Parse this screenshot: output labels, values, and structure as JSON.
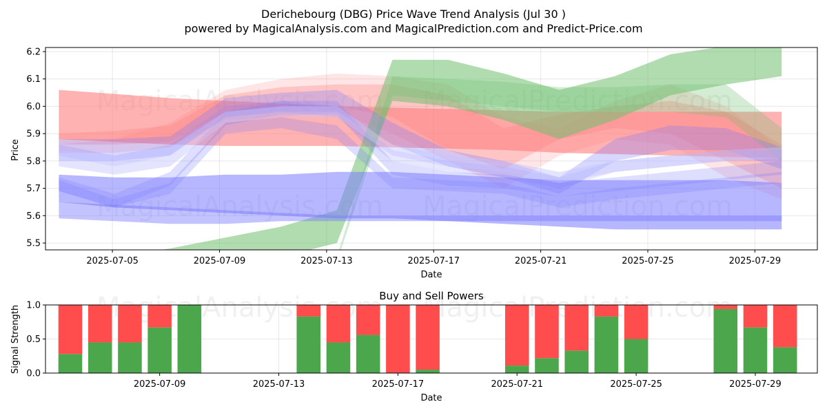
{
  "figure": {
    "title": "Derichebourg (DBG) Price Wave Trend Analysis (Jul 30 )",
    "subtitle": "powered by MagicalAnalysis.com and MagicalPrediction.com and Predict-Price.com",
    "watermarks": [
      "MagicalAnalysis.com",
      "MagicalPrediction.com"
    ]
  },
  "chart_data": [
    {
      "type": "area",
      "xlabel": "Date",
      "ylabel": "Price",
      "x_start": "2025-07-03",
      "x_end": "2025-07-30",
      "xlim": [
        "2025-07-02 12:00",
        "2025-07-31 08:00"
      ],
      "ylim": [
        5.475,
        6.215
      ],
      "xticks": [
        "2025-07-05",
        "2025-07-09",
        "2025-07-13",
        "2025-07-17",
        "2025-07-21",
        "2025-07-25",
        "2025-07-29"
      ],
      "yticks": [
        5.5,
        5.6,
        5.7,
        5.8,
        5.9,
        6.0,
        6.1,
        6.2
      ],
      "grid": true,
      "colors": {
        "red": "#ff7f7f",
        "green": "#6fbf6f",
        "blue": "#7b7bff",
        "blue_light": "#c4c4ff"
      },
      "series": [
        {
          "color": "red",
          "opacity": 0.6,
          "upper": [
            6.06,
            6.045,
            6.03,
            6.02,
            6.01,
            6.0,
            5.995,
            5.99,
            5.985,
            5.98,
            5.98,
            5.98,
            5.98,
            5.98
          ],
          "lower": [
            5.88,
            5.87,
            5.86,
            5.855,
            5.855,
            5.855,
            5.85,
            5.845,
            5.84,
            5.83,
            5.825,
            5.82,
            5.815,
            5.81
          ]
        },
        {
          "color": "red",
          "opacity": 0.3,
          "upper": [
            5.9,
            5.91,
            5.93,
            6.04,
            6.07,
            6.08,
            6.08,
            6.04,
            5.92,
            5.97,
            6.0,
            6.02,
            5.98,
            5.86
          ],
          "lower": [
            5.86,
            5.86,
            5.87,
            5.98,
            6.0,
            6.0,
            5.96,
            5.84,
            5.77,
            5.88,
            5.92,
            5.9,
            5.8,
            5.7
          ]
        },
        {
          "color": "red",
          "opacity": 0.2,
          "upper": [
            5.86,
            5.88,
            5.94,
            6.06,
            6.1,
            6.12,
            6.11,
            6.08,
            5.96,
            5.92,
            6.02,
            6.08,
            6.0,
            5.84
          ],
          "lower": [
            5.83,
            5.83,
            5.85,
            5.95,
            5.96,
            5.98,
            5.9,
            5.8,
            5.7,
            5.82,
            5.88,
            5.86,
            5.74,
            5.66
          ]
        },
        {
          "color": "green",
          "opacity": 0.55,
          "upper": [
            5.4,
            5.45,
            5.48,
            5.52,
            5.56,
            5.62,
            6.17,
            6.17,
            6.12,
            6.06,
            6.11,
            6.19,
            6.22,
            6.23
          ],
          "lower": [
            5.35,
            5.38,
            5.4,
            5.42,
            5.45,
            5.5,
            6.02,
            6.0,
            5.95,
            5.88,
            5.95,
            6.04,
            6.08,
            6.11
          ]
        },
        {
          "color": "green",
          "opacity": 0.3,
          "upper": [
            5.4,
            5.41,
            5.42,
            5.43,
            5.44,
            5.45,
            6.11,
            6.1,
            6.09,
            6.07,
            6.07,
            6.08,
            6.08,
            5.92
          ],
          "lower": [
            5.38,
            5.39,
            5.4,
            5.41,
            5.42,
            5.43,
            6.04,
            6.02,
            6.0,
            5.98,
            5.98,
            5.98,
            5.96,
            5.8
          ]
        },
        {
          "color": "blue",
          "opacity": 0.55,
          "upper": [
            5.75,
            5.74,
            5.74,
            5.75,
            5.75,
            5.76,
            5.76,
            5.75,
            5.74,
            5.73,
            5.73,
            5.73,
            5.73,
            5.72
          ],
          "lower": [
            5.65,
            5.63,
            5.62,
            5.61,
            5.6,
            5.59,
            5.59,
            5.58,
            5.57,
            5.56,
            5.55,
            5.55,
            5.55,
            5.55
          ]
        },
        {
          "color": "blue",
          "opacity": 0.45,
          "upper": [
            5.65,
            5.64,
            5.63,
            5.62,
            5.61,
            5.6,
            5.6,
            5.6,
            5.6,
            5.6,
            5.6,
            5.6,
            5.6,
            5.6
          ],
          "lower": [
            5.59,
            5.58,
            5.57,
            5.57,
            5.58,
            5.58,
            5.58,
            5.58,
            5.58,
            5.58,
            5.58,
            5.58,
            5.58,
            5.58
          ]
        },
        {
          "color": "blue",
          "opacity": 0.3,
          "upper": [
            5.88,
            5.88,
            5.89,
            6.03,
            6.05,
            6.06,
            5.94,
            5.84,
            5.8,
            5.74,
            5.88,
            5.93,
            5.92,
            5.85
          ],
          "lower": [
            5.8,
            5.8,
            5.82,
            5.96,
            5.98,
            5.98,
            5.86,
            5.78,
            5.74,
            5.68,
            5.8,
            5.84,
            5.84,
            5.77
          ]
        },
        {
          "color": "blue",
          "opacity": 0.25,
          "upper": [
            5.74,
            5.68,
            5.76,
            5.98,
            6.02,
            6.02,
            5.8,
            5.76,
            5.75,
            5.72,
            5.74,
            5.76,
            5.78,
            5.8
          ]
        },
        {
          "color": "blue",
          "opacity": 0.25,
          "upper": [
            5.73,
            5.66,
            5.72,
            5.94,
            5.96,
            5.93,
            5.74,
            5.73,
            5.72,
            5.67,
            5.7,
            5.72,
            5.74,
            5.76
          ],
          "lower": [
            5.69,
            5.63,
            5.68,
            5.9,
            5.92,
            5.88,
            5.7,
            5.69,
            5.68,
            5.63,
            5.66,
            5.68,
            5.7,
            5.72
          ]
        },
        {
          "color": "blue",
          "opacity": 0.18,
          "upper": [
            5.86,
            5.82,
            5.86,
            6.0,
            6.02,
            6.0,
            5.84,
            5.8,
            5.78,
            5.74,
            5.8,
            5.82,
            5.84,
            5.84
          ],
          "lower": [
            5.82,
            5.78,
            5.82,
            5.96,
            5.98,
            5.96,
            5.8,
            5.76,
            5.74,
            5.7,
            5.76,
            5.78,
            5.8,
            5.8
          ]
        },
        {
          "color": "blue_light",
          "opacity": 0.45,
          "upper": [
            5.84,
            5.82,
            5.85,
            5.98,
            6.0,
            6.0,
            5.86,
            5.82,
            5.8,
            5.76,
            5.8,
            5.82,
            5.84,
            5.85
          ],
          "lower": [
            5.78,
            5.75,
            5.78,
            5.94,
            5.96,
            5.96,
            5.82,
            5.78,
            5.76,
            5.72,
            5.76,
            5.78,
            5.8,
            5.81
          ]
        }
      ]
    },
    {
      "type": "bar",
      "title": "Buy and Sell Powers",
      "xlabel": "Date",
      "ylabel": "Signal Strength",
      "xlim": [
        "2025-07-05 04:00",
        "2025-07-31 02:00"
      ],
      "ylim": [
        0,
        1
      ],
      "yticks": [
        "0.0",
        "0.5",
        "1.0"
      ],
      "xticks": [
        "2025-07-09",
        "2025-07-13",
        "2025-07-17",
        "2025-07-21",
        "2025-07-25",
        "2025-07-29"
      ],
      "grid": true,
      "colors": {
        "buy": "#4ca64c",
        "sell": "#ff4c4c"
      },
      "categories": [
        "2025-07-06",
        "2025-07-07",
        "2025-07-08",
        "2025-07-09",
        "2025-07-10",
        "2025-07-14",
        "2025-07-15",
        "2025-07-16",
        "2025-07-17",
        "2025-07-18",
        "2025-07-21",
        "2025-07-22",
        "2025-07-23",
        "2025-07-24",
        "2025-07-25",
        "2025-07-28",
        "2025-07-29",
        "2025-07-30"
      ],
      "series": [
        {
          "key": "buy",
          "values": [
            0.28,
            0.45,
            0.45,
            0.67,
            1.0,
            0.83,
            0.45,
            0.56,
            0.0,
            0.05,
            0.11,
            0.22,
            0.33,
            0.83,
            0.5,
            0.94,
            0.67,
            0.38
          ]
        },
        {
          "key": "sell",
          "values": [
            0.72,
            0.55,
            0.55,
            0.33,
            0.0,
            0.17,
            0.55,
            0.44,
            1.0,
            0.95,
            0.89,
            0.78,
            0.67,
            0.17,
            0.5,
            0.06,
            0.33,
            0.62
          ]
        }
      ]
    }
  ]
}
